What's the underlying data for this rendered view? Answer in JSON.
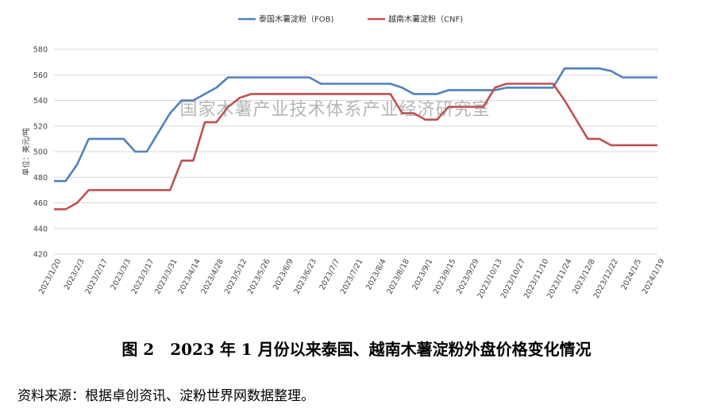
{
  "chart_data": {
    "type": "line",
    "ylabel": "单位：美元/吨",
    "ylim": [
      420,
      580
    ],
    "yticks": [
      420,
      440,
      460,
      480,
      500,
      520,
      540,
      560,
      580
    ],
    "grid": true,
    "legend_position": "top",
    "categories": [
      "2023/1/20",
      "2023/1/27",
      "2023/2/3",
      "2023/2/10",
      "2023/2/17",
      "2023/2/24",
      "2023/3/3",
      "2023/3/10",
      "2023/3/17",
      "2023/3/24",
      "2023/3/31",
      "2023/4/7",
      "2023/4/14",
      "2023/4/21",
      "2023/4/28",
      "2023/5/5",
      "2023/5/12",
      "2023/5/19",
      "2023/5/26",
      "2023/6/2",
      "2023/6/9",
      "2023/6/16",
      "2023/6/23",
      "2023/6/30",
      "2023/7/7",
      "2023/7/14",
      "2023/7/21",
      "2023/7/28",
      "2023/8/4",
      "2023/8/11",
      "2023/8/18",
      "2023/8/25",
      "2023/9/1",
      "2023/9/8",
      "2023/9/15",
      "2023/9/22",
      "2023/9/29",
      "2023/10/6",
      "2023/10/13",
      "2023/10/20",
      "2023/10/27",
      "2023/11/3",
      "2023/11/10",
      "2023/11/17",
      "2023/11/24",
      "2023/12/1",
      "2023/12/8",
      "2023/12/15",
      "2023/12/22",
      "2023/12/29",
      "2024/1/5",
      "2024/1/12",
      "2024/1/19"
    ],
    "tick_labels": [
      "2023/1/20",
      "2023/2/3",
      "2023/2/17",
      "2023/3/3",
      "2023/3/17",
      "2023/3/31",
      "2023/4/14",
      "2023/4/28",
      "2023/5/12",
      "2023/5/26",
      "2023/6/9",
      "2023/6/23",
      "2023/7/7",
      "2023/7/21",
      "2023/8/4",
      "2023/8/18",
      "2023/9/1",
      "2023/9/15",
      "2023/9/29",
      "2023/10/13",
      "2023/10/27",
      "2023/11/10",
      "2023/11/24",
      "2023/12/8",
      "2023/12/22",
      "2024/1/5",
      "2024/1/19"
    ],
    "series": [
      {
        "name": "泰国木薯淀粉（FOB)",
        "color": "#4f81bd",
        "values": [
          477,
          477,
          490,
          510,
          510,
          510,
          510,
          500,
          500,
          515,
          530,
          540,
          540,
          545,
          550,
          558,
          558,
          558,
          558,
          558,
          558,
          558,
          558,
          553,
          553,
          553,
          553,
          553,
          553,
          553,
          550,
          545,
          545,
          545,
          548,
          548,
          548,
          548,
          548,
          550,
          550,
          550,
          550,
          550,
          565,
          565,
          565,
          565,
          563,
          558,
          558,
          558,
          558
        ]
      },
      {
        "name": "越南木薯淀粉（CNF)",
        "color": "#c0504d",
        "values": [
          455,
          455,
          460,
          470,
          470,
          470,
          470,
          470,
          470,
          470,
          470,
          493,
          493,
          523,
          523,
          535,
          542,
          545,
          545,
          545,
          545,
          545,
          545,
          545,
          545,
          545,
          545,
          545,
          545,
          545,
          530,
          530,
          525,
          525,
          535,
          535,
          535,
          535,
          550,
          553,
          553,
          553,
          553,
          553,
          540,
          525,
          510,
          510,
          505,
          505,
          505,
          505,
          505
        ]
      }
    ]
  },
  "watermark": "国家木薯产业技术体系产业经济研究室",
  "caption": "图 2　2023 年 1 月份以来泰国、越南木薯淀粉外盘价格变化情况",
  "source": "资料来源：根据卓创资讯、淀粉世界网数据整理。"
}
